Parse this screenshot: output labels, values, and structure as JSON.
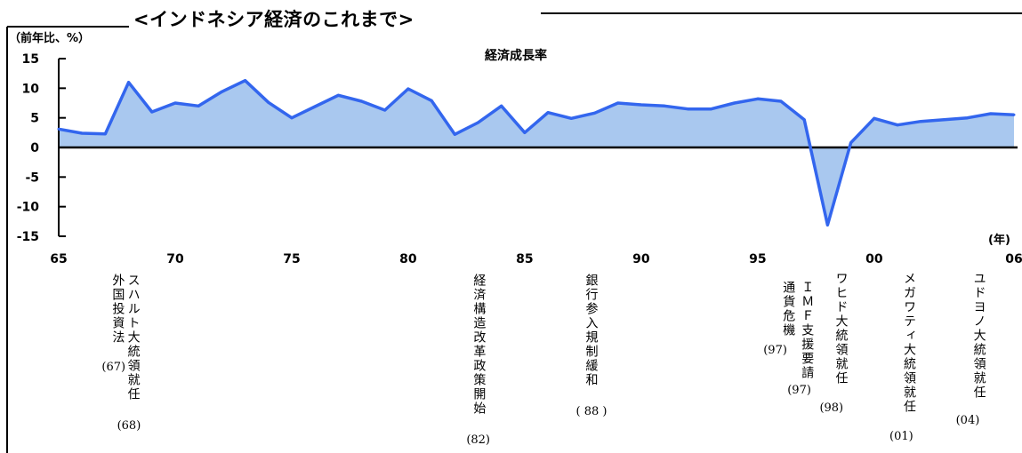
{
  "header": {
    "title": "<インドネシア経済のこれまで>",
    "unit_label": "（前年比、%）",
    "year_unit": "(年)"
  },
  "chart_data": {
    "type": "area",
    "title": "経済成長率",
    "xlabel": "",
    "ylabel": "（前年比、%）",
    "ylim": [
      -15,
      15
    ],
    "yticks": [
      15,
      10,
      5,
      0,
      -5,
      -10,
      -15
    ],
    "xlim": [
      1965,
      2006
    ],
    "xticks": [
      {
        "x": 1965,
        "label": "65"
      },
      {
        "x": 1970,
        "label": "70"
      },
      {
        "x": 1975,
        "label": "75"
      },
      {
        "x": 1980,
        "label": "80"
      },
      {
        "x": 1985,
        "label": "85"
      },
      {
        "x": 1990,
        "label": "90"
      },
      {
        "x": 1995,
        "label": "95"
      },
      {
        "x": 2000,
        "label": "00"
      },
      {
        "x": 2006,
        "label": "06"
      }
    ],
    "grid": false,
    "legend": "none",
    "colors": {
      "line": "#3366ee",
      "fill": "#a9c8ef",
      "axis": "#000000"
    },
    "series": [
      {
        "x": [
          1965,
          1966,
          1967,
          1968,
          1969,
          1970,
          1971,
          1972,
          1973,
          1974,
          1975,
          1976,
          1977,
          1978,
          1979,
          1980,
          1981,
          1982,
          1983,
          1984,
          1985,
          1986,
          1987,
          1988,
          1989,
          1990,
          1991,
          1992,
          1993,
          1994,
          1995,
          1996,
          1997,
          1998,
          1999,
          2000,
          2001,
          2002,
          2003,
          2004,
          2005,
          2006
        ],
        "values": [
          3.1,
          2.4,
          2.3,
          11.0,
          6.0,
          7.5,
          7.0,
          9.4,
          11.3,
          7.6,
          5.0,
          6.9,
          8.8,
          7.8,
          6.3,
          9.9,
          7.9,
          2.2,
          4.2,
          7.0,
          2.5,
          5.9,
          4.9,
          5.8,
          7.5,
          7.2,
          7.0,
          6.5,
          6.5,
          7.5,
          8.2,
          7.8,
          4.7,
          -13.1,
          0.8,
          4.9,
          3.8,
          4.4,
          4.7,
          5.0,
          5.7,
          5.5
        ]
      }
    ],
    "annotations": [
      {
        "x": 1967,
        "text": "外国投資法",
        "year": "(67)"
      },
      {
        "x": 1968,
        "text": "スハルト大統領就任",
        "year": "(68)"
      },
      {
        "x": 1982,
        "text": "経済構造改革政策開始",
        "year": "(82)"
      },
      {
        "x": 1988,
        "text": "銀行参入規制緩和",
        "year": "( 88 )"
      },
      {
        "x": 1997,
        "text": "通貨危機",
        "year": "(97)"
      },
      {
        "x": 1997,
        "text": "ＩＭＦ支援要請",
        "year": "(97)"
      },
      {
        "x": 1998,
        "text": "ワヒド大統領就任",
        "year": "(98)"
      },
      {
        "x": 2001,
        "text": "メガワティ大統領就任",
        "year": "(01)"
      },
      {
        "x": 2004,
        "text": "ユドヨノ大統領就任",
        "year": "(04)"
      }
    ]
  }
}
